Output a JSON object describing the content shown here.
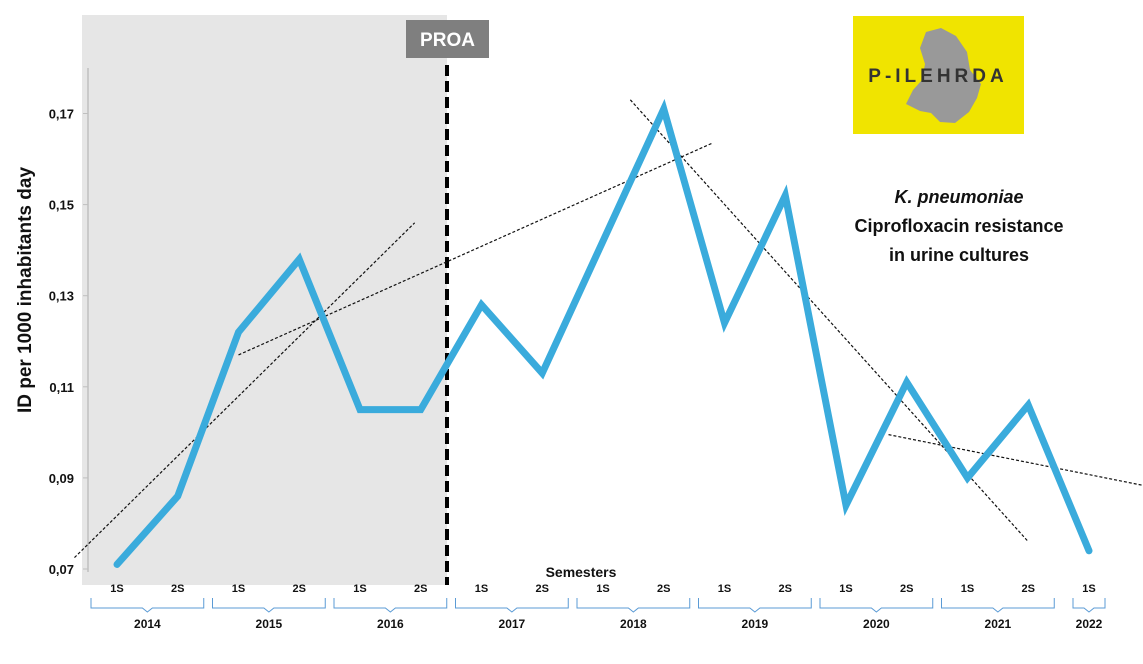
{
  "chart_data": {
    "type": "line",
    "title": "K. pneumoniae Ciprofloxacin resistance in urine cultures",
    "annotation_lines": [
      "K. pneumoniae",
      "Ciprofloxacin resistance",
      "in urine cultures"
    ],
    "ylabel": "ID per 1000 inhabitants  day",
    "xlabel": "Semesters",
    "ylim": [
      0.07,
      0.18
    ],
    "yticks": [
      "0,07",
      "0,09",
      "0,11",
      "0,13",
      "0,15",
      "0,17"
    ],
    "ytick_values": [
      0.07,
      0.09,
      0.11,
      0.13,
      0.15,
      0.17
    ],
    "categories": [
      "1S",
      "2S",
      "1S",
      "2S",
      "1S",
      "2S",
      "1S",
      "2S",
      "1S",
      "2S",
      "1S",
      "2S",
      "1S",
      "2S",
      "1S",
      "2S",
      "1S"
    ],
    "years": [
      "2014",
      "2015",
      "2016",
      "2017",
      "2018",
      "2019",
      "2020",
      "2021",
      "2022"
    ],
    "series": [
      {
        "name": "Ciprofloxacin resistance",
        "color": "#3aabdc",
        "values": [
          0.071,
          0.086,
          0.122,
          0.138,
          0.105,
          0.105,
          0.128,
          0.113,
          0.142,
          0.171,
          0.124,
          0.152,
          0.084,
          0.111,
          0.09,
          0.106,
          0.074
        ]
      }
    ],
    "intervention": {
      "label": "PROA",
      "between_index": [
        5,
        6
      ],
      "shade_color": "#e6e6e6",
      "label_bg": "#7f7f7f"
    },
    "trend_lines": [
      {
        "from": {
          "x": -0.7,
          "y": 0.0725
        },
        "to": {
          "x": 4.9,
          "y": 0.146
        }
      },
      {
        "from": {
          "x": 2.0,
          "y": 0.117
        },
        "to": {
          "x": 9.8,
          "y": 0.1635
        }
      },
      {
        "from": {
          "x": 8.45,
          "y": 0.173
        },
        "to": {
          "x": 15.0,
          "y": 0.076
        }
      },
      {
        "from": {
          "x": 12.7,
          "y": 0.0995
        },
        "to": {
          "x": 17.4,
          "y": 0.087
        }
      }
    ]
  },
  "logo": {
    "text": "P-ILEHRDA",
    "bg": "#f0e400"
  }
}
